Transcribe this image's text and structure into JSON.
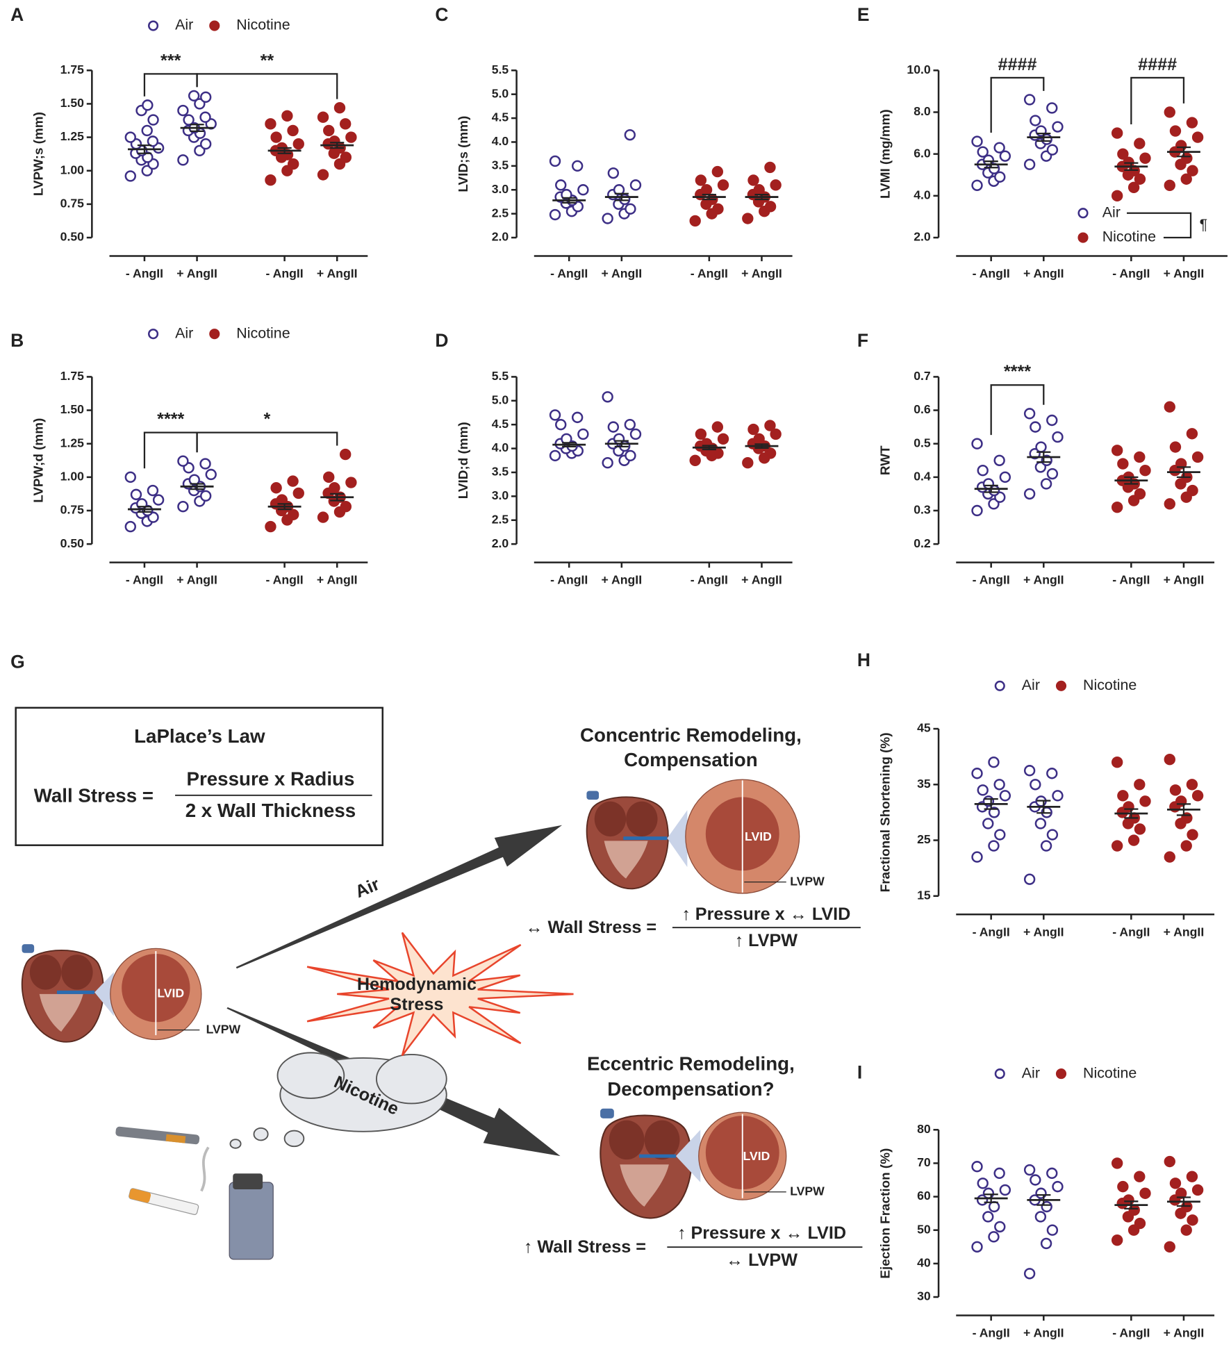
{
  "chart_data": [
    {
      "type": "dot",
      "label": "A",
      "ylabel": "LVPW;s  (mm)",
      "categories": [
        "- AngII",
        "+ AngII",
        "- AngII",
        "+ AngII"
      ],
      "ylim": [
        0.5,
        1.75
      ],
      "yticks": [
        {
          "value": 0.5,
          "label": "0.50"
        },
        0.75,
        {
          "value": 1,
          "label": "1.00"
        },
        1.25,
        {
          "value": 1.5,
          "label": "1.50"
        },
        1.75
      ],
      "legend": "top",
      "series": [
        {
          "name": "Air",
          "color": "#3d2f86",
          "marker": "open",
          "groups": [
            {
              "points": [
                0.96,
                1.0,
                1.05,
                1.08,
                1.1,
                1.13,
                1.15,
                1.17,
                1.2,
                1.22,
                1.25,
                1.3,
                1.38,
                1.45,
                1.49
              ],
              "mean": 1.16,
              "sem": 0.03
            },
            {
              "points": [
                1.08,
                1.15,
                1.2,
                1.25,
                1.28,
                1.3,
                1.32,
                1.35,
                1.38,
                1.4,
                1.45,
                1.5,
                1.55,
                1.56
              ],
              "mean": 1.32,
              "sem": 0.025
            }
          ]
        },
        {
          "name": "Nicotine",
          "color": "#a3201f",
          "marker": "filled",
          "groups": [
            {
              "points": [
                0.93,
                1.0,
                1.05,
                1.1,
                1.12,
                1.15,
                1.17,
                1.2,
                1.25,
                1.3,
                1.35,
                1.41
              ],
              "mean": 1.15,
              "sem": 0.02
            },
            {
              "points": [
                0.97,
                1.05,
                1.1,
                1.13,
                1.17,
                1.2,
                1.22,
                1.25,
                1.3,
                1.35,
                1.4,
                1.47
              ],
              "mean": 1.19,
              "sem": 0.02
            }
          ]
        }
      ],
      "annotations": [
        {
          "text": "***",
          "between": [
            0,
            1
          ]
        },
        {
          "text": "**",
          "between": [
            1,
            3
          ]
        }
      ]
    },
    {
      "type": "dot",
      "label": "B",
      "ylabel": "LVPW;d  (mm)",
      "categories": [
        "- AngII",
        "+ AngII",
        "- AngII",
        "+ AngII"
      ],
      "ylim": [
        0.5,
        1.75
      ],
      "yticks": [
        {
          "value": 0.5,
          "label": "0.50"
        },
        0.75,
        {
          "value": 1,
          "label": "1.00"
        },
        1.25,
        {
          "value": 1.5,
          "label": "1.50"
        },
        1.75
      ],
      "legend": "top",
      "series": [
        {
          "name": "Air",
          "color": "#3d2f86",
          "marker": "open",
          "groups": [
            {
              "points": [
                0.63,
                0.67,
                0.7,
                0.73,
                0.75,
                0.77,
                0.8,
                0.83,
                0.87,
                0.9,
                1.0
              ],
              "mean": 0.76,
              "sem": 0.02
            },
            {
              "points": [
                0.78,
                0.82,
                0.86,
                0.9,
                0.93,
                0.95,
                0.98,
                1.02,
                1.07,
                1.1,
                1.12
              ],
              "mean": 0.93,
              "sem": 0.02
            }
          ]
        },
        {
          "name": "Nicotine",
          "color": "#a3201f",
          "marker": "filled",
          "groups": [
            {
              "points": [
                0.63,
                0.68,
                0.72,
                0.75,
                0.78,
                0.8,
                0.83,
                0.88,
                0.92,
                0.97
              ],
              "mean": 0.78,
              "sem": 0.02
            },
            {
              "points": [
                0.7,
                0.74,
                0.78,
                0.82,
                0.85,
                0.88,
                0.92,
                0.96,
                1.0,
                1.17
              ],
              "mean": 0.85,
              "sem": 0.025
            }
          ]
        }
      ],
      "annotations": [
        {
          "text": "****",
          "between": [
            0,
            1
          ]
        },
        {
          "text": "*",
          "between": [
            1,
            3
          ]
        }
      ]
    },
    {
      "type": "dot",
      "label": "C",
      "ylabel": "LVID;s (mm)",
      "categories": [
        "- AngII",
        "+ AngII",
        "- AngII",
        "+ AngII"
      ],
      "ylim": [
        2,
        5.5
      ],
      "yticks": [
        {
          "value": 2,
          "label": "2.0"
        },
        2.5,
        {
          "value": 3,
          "label": "3.0"
        },
        3.5,
        {
          "value": 4,
          "label": "4.0"
        },
        4.5,
        {
          "value": 5,
          "label": "5.0"
        },
        5.5
      ],
      "series": [
        {
          "color": "#3d2f86",
          "marker": "open",
          "groups": [
            {
              "points": [
                2.48,
                2.55,
                2.65,
                2.72,
                2.78,
                2.85,
                2.9,
                3.0,
                3.1,
                3.5,
                3.6
              ],
              "mean": 2.78,
              "sem": 0.05
            },
            {
              "points": [
                2.4,
                2.5,
                2.6,
                2.7,
                2.8,
                2.9,
                3.0,
                3.1,
                3.35,
                4.15
              ],
              "mean": 2.85,
              "sem": 0.07
            }
          ]
        },
        {
          "color": "#a3201f",
          "marker": "filled",
          "groups": [
            {
              "points": [
                2.35,
                2.5,
                2.6,
                2.7,
                2.8,
                2.9,
                3.0,
                3.1,
                3.2,
                3.38
              ],
              "mean": 2.85,
              "sem": 0.05
            },
            {
              "points": [
                2.4,
                2.55,
                2.65,
                2.75,
                2.85,
                2.9,
                3.0,
                3.1,
                3.2,
                3.47
              ],
              "mean": 2.85,
              "sem": 0.05
            }
          ]
        }
      ],
      "annotations": []
    },
    {
      "type": "dot",
      "label": "D",
      "ylabel": "LVID;d (mm)",
      "categories": [
        "- AngII",
        "+ AngII",
        "- AngII",
        "+ AngII"
      ],
      "ylim": [
        2,
        5.5
      ],
      "yticks": [
        {
          "value": 2,
          "label": "2.0"
        },
        2.5,
        {
          "value": 3,
          "label": "3.0"
        },
        3.5,
        {
          "value": 4,
          "label": "4.0"
        },
        4.5,
        {
          "value": 5,
          "label": "5.0"
        },
        5.5
      ],
      "series": [
        {
          "color": "#3d2f86",
          "marker": "open",
          "groups": [
            {
              "points": [
                3.85,
                3.9,
                3.95,
                4.0,
                4.05,
                4.1,
                4.2,
                4.3,
                4.5,
                4.65,
                4.7
              ],
              "mean": 4.08,
              "sem": 0.04
            },
            {
              "points": [
                3.7,
                3.75,
                3.85,
                3.95,
                4.05,
                4.1,
                4.2,
                4.3,
                4.45,
                4.5,
                5.08
              ],
              "mean": 4.1,
              "sem": 0.06
            }
          ]
        },
        {
          "color": "#a3201f",
          "marker": "filled",
          "groups": [
            {
              "points": [
                3.75,
                3.85,
                3.9,
                3.95,
                4.0,
                4.05,
                4.1,
                4.2,
                4.3,
                4.45
              ],
              "mean": 4.02,
              "sem": 0.04
            },
            {
              "points": [
                3.7,
                3.8,
                3.9,
                4.0,
                4.05,
                4.1,
                4.2,
                4.3,
                4.4,
                4.48
              ],
              "mean": 4.05,
              "sem": 0.04
            }
          ]
        }
      ],
      "annotations": []
    },
    {
      "type": "dot",
      "label": "E",
      "ylabel": "LVMI  (mg/mm)",
      "categories": [
        "- AngII",
        "+ AngII",
        "- AngII",
        "+ AngII"
      ],
      "ylim": [
        2,
        10
      ],
      "yticks": [
        {
          "value": 2,
          "label": "2.0"
        },
        {
          "value": 4,
          "label": "4.0"
        },
        {
          "value": 6,
          "label": "6.0"
        },
        {
          "value": 8,
          "label": "8.0"
        },
        {
          "value": 10,
          "label": "10.0"
        }
      ],
      "legend": "inside-bottom-right",
      "legend_annotation": "¶",
      "series": [
        {
          "name": "Air",
          "color": "#3d2f86",
          "marker": "open",
          "groups": [
            {
              "points": [
                4.5,
                4.7,
                4.9,
                5.1,
                5.3,
                5.5,
                5.7,
                5.9,
                6.1,
                6.3,
                6.6
              ],
              "mean": 5.5,
              "sem": 0.15
            },
            {
              "points": [
                5.5,
                5.9,
                6.2,
                6.5,
                6.7,
                6.9,
                7.1,
                7.3,
                7.6,
                8.2,
                8.6
              ],
              "mean": 6.8,
              "sem": 0.18
            }
          ]
        },
        {
          "name": "Nicotine",
          "color": "#a3201f",
          "marker": "filled",
          "groups": [
            {
              "points": [
                4.0,
                4.4,
                4.8,
                5.0,
                5.2,
                5.4,
                5.6,
                5.8,
                6.0,
                6.5,
                7.0
              ],
              "mean": 5.4,
              "sem": 0.17
            },
            {
              "points": [
                4.5,
                4.8,
                5.2,
                5.5,
                5.8,
                6.1,
                6.4,
                6.8,
                7.1,
                7.5,
                8.0
              ],
              "mean": 6.1,
              "sem": 0.22
            }
          ]
        }
      ],
      "annotations": [
        {
          "text": "####",
          "between": [
            0,
            1
          ]
        },
        {
          "text": "####",
          "between": [
            2,
            3
          ]
        }
      ]
    },
    {
      "type": "dot",
      "label": "F",
      "ylabel": "RWT",
      "categories": [
        "- AngII",
        "+ AngII",
        "- AngII",
        "+ AngII"
      ],
      "ylim": [
        0.2,
        0.7
      ],
      "yticks": [
        0.2,
        0.3,
        0.4,
        0.5,
        0.6,
        0.7
      ],
      "series": [
        {
          "color": "#3d2f86",
          "marker": "open",
          "groups": [
            {
              "points": [
                0.3,
                0.32,
                0.34,
                0.35,
                0.36,
                0.37,
                0.38,
                0.4,
                0.42,
                0.45,
                0.5
              ],
              "mean": 0.365,
              "sem": 0.01
            },
            {
              "points": [
                0.35,
                0.38,
                0.41,
                0.43,
                0.45,
                0.47,
                0.49,
                0.52,
                0.55,
                0.57,
                0.59
              ],
              "mean": 0.46,
              "sem": 0.015
            }
          ]
        },
        {
          "color": "#a3201f",
          "marker": "filled",
          "groups": [
            {
              "points": [
                0.31,
                0.33,
                0.35,
                0.37,
                0.38,
                0.39,
                0.4,
                0.42,
                0.44,
                0.46,
                0.48
              ],
              "mean": 0.39,
              "sem": 0.01
            },
            {
              "points": [
                0.32,
                0.34,
                0.36,
                0.38,
                0.4,
                0.42,
                0.44,
                0.46,
                0.49,
                0.53,
                0.61
              ],
              "mean": 0.415,
              "sem": 0.015
            }
          ]
        }
      ],
      "annotations": [
        {
          "text": "****",
          "between": [
            0,
            1
          ]
        }
      ]
    },
    {
      "type": "dot",
      "label": "H",
      "ylabel": "Fractional Shortening (%)",
      "categories": [
        "- AngII",
        "+ AngII",
        "- AngII",
        "+ AngII"
      ],
      "ylim": [
        15,
        45
      ],
      "yticks": [
        15,
        25,
        35,
        45
      ],
      "legend": "top",
      "series": [
        {
          "name": "Air",
          "color": "#3d2f86",
          "marker": "open",
          "groups": [
            {
              "points": [
                22,
                24,
                26,
                28,
                30,
                31,
                32,
                33,
                34,
                35,
                37,
                39
              ],
              "mean": 31.5,
              "sem": 0.9
            },
            {
              "points": [
                18,
                24,
                26,
                28,
                30,
                31,
                32,
                33,
                35,
                37,
                37.5
              ],
              "mean": 31,
              "sem": 1.1
            }
          ]
        },
        {
          "name": "Nicotine",
          "color": "#a3201f",
          "marker": "filled",
          "groups": [
            {
              "points": [
                24,
                25,
                27,
                28,
                29,
                30,
                31,
                32,
                33,
                35,
                39
              ],
              "mean": 29.8,
              "sem": 0.8
            },
            {
              "points": [
                22,
                24,
                26,
                28,
                29,
                31,
                32,
                33,
                34,
                35,
                39.5
              ],
              "mean": 30.5,
              "sem": 1.0
            }
          ]
        }
      ],
      "annotations": []
    },
    {
      "type": "dot",
      "label": "I",
      "ylabel": "Ejection  Fraction  (%)",
      "categories": [
        "- AngII",
        "+ AngII",
        "- AngII",
        "+ AngII"
      ],
      "ylim": [
        30,
        80
      ],
      "yticks": [
        30,
        40,
        50,
        60,
        70,
        80
      ],
      "legend": "top",
      "series": [
        {
          "name": "Air",
          "color": "#3d2f86",
          "marker": "open",
          "groups": [
            {
              "points": [
                45,
                48,
                51,
                54,
                57,
                59,
                61,
                62,
                64,
                67,
                69
              ],
              "mean": 59.5,
              "sem": 1.2
            },
            {
              "points": [
                37,
                46,
                50,
                54,
                57,
                59,
                61,
                63,
                65,
                67,
                68
              ],
              "mean": 59,
              "sem": 1.5
            }
          ]
        },
        {
          "name": "Nicotine",
          "color": "#a3201f",
          "marker": "filled",
          "groups": [
            {
              "points": [
                47,
                50,
                52,
                54,
                56,
                58,
                59,
                61,
                63,
                66,
                70
              ],
              "mean": 57.5,
              "sem": 1.1
            },
            {
              "points": [
                45,
                50,
                53,
                55,
                57,
                59,
                61,
                62,
                64,
                66,
                70.5
              ],
              "mean": 58.5,
              "sem": 1.3
            }
          ]
        }
      ],
      "annotations": []
    }
  ],
  "diagram": {
    "label": "G",
    "law": {
      "title": "LaPlace’s Law",
      "lhs": "Wall Stress =",
      "numerator": "Pressure x Radius",
      "denominator": "2 x Wall Thickness"
    },
    "baseline": {
      "lvid": "LVID",
      "lvpw": "LVPW"
    },
    "air_arrow": "Air",
    "nicotine_arrow": "Nicotine",
    "stress": [
      "Hemodynamic",
      "Stress"
    ],
    "concentric": {
      "title": [
        "Concentric Remodeling,",
        "Compensation"
      ],
      "lvid": "LVID",
      "lvpw": "LVPW",
      "lhs": "↔ Wall Stress =",
      "numerator": "↑ Pressure x ↔ LVID",
      "denominator": "↑ LVPW"
    },
    "eccentric": {
      "title": [
        "Eccentric Remodeling,",
        "Decompensation?"
      ],
      "lvid": "LVID",
      "lvpw": "LVPW",
      "lhs": "↑ Wall Stress =",
      "numerator": "↑ Pressure x ↔ LVID",
      "denominator": "↔  LVPW"
    }
  }
}
